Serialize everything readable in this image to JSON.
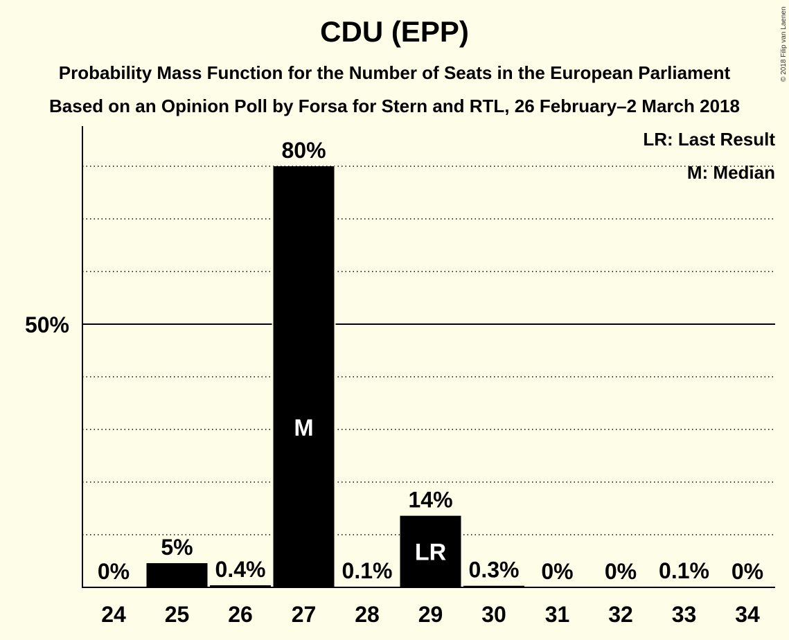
{
  "chart_data": {
    "type": "bar",
    "title": "CDU (EPP)",
    "subtitle_lines": [
      "Probability Mass Function for the Number of Seats in the European Parliament",
      "Based on an Opinion Poll by Forsa for Stern and RTL, 26 February–2 March 2018"
    ],
    "categories": [
      "24",
      "25",
      "26",
      "27",
      "28",
      "29",
      "30",
      "31",
      "32",
      "33",
      "34"
    ],
    "values": [
      0,
      4.6,
      0.4,
      80,
      0.1,
      13.6,
      0.3,
      0,
      0,
      0.1,
      0
    ],
    "value_labels": [
      "0%",
      "5%",
      "0.4%",
      "80%",
      "0.1%",
      "14%",
      "0.3%",
      "0%",
      "0%",
      "0.1%",
      "0%"
    ],
    "bar_markers": {
      "27": "M",
      "29": "LR"
    },
    "y_tick_labels": [
      {
        "value": 50,
        "label": "50%"
      }
    ],
    "ylim": [
      0,
      87.5
    ],
    "grid": "dotted every 10%, solid at 50%",
    "legend": [
      "LR: Last Result",
      "M: Median"
    ],
    "legend_placement": "top-right",
    "copyright": "© 2018 Filip van Laenen",
    "colors": {
      "background": "#fefde8",
      "bar": "#000000",
      "bar_text": "#ffffff"
    }
  }
}
